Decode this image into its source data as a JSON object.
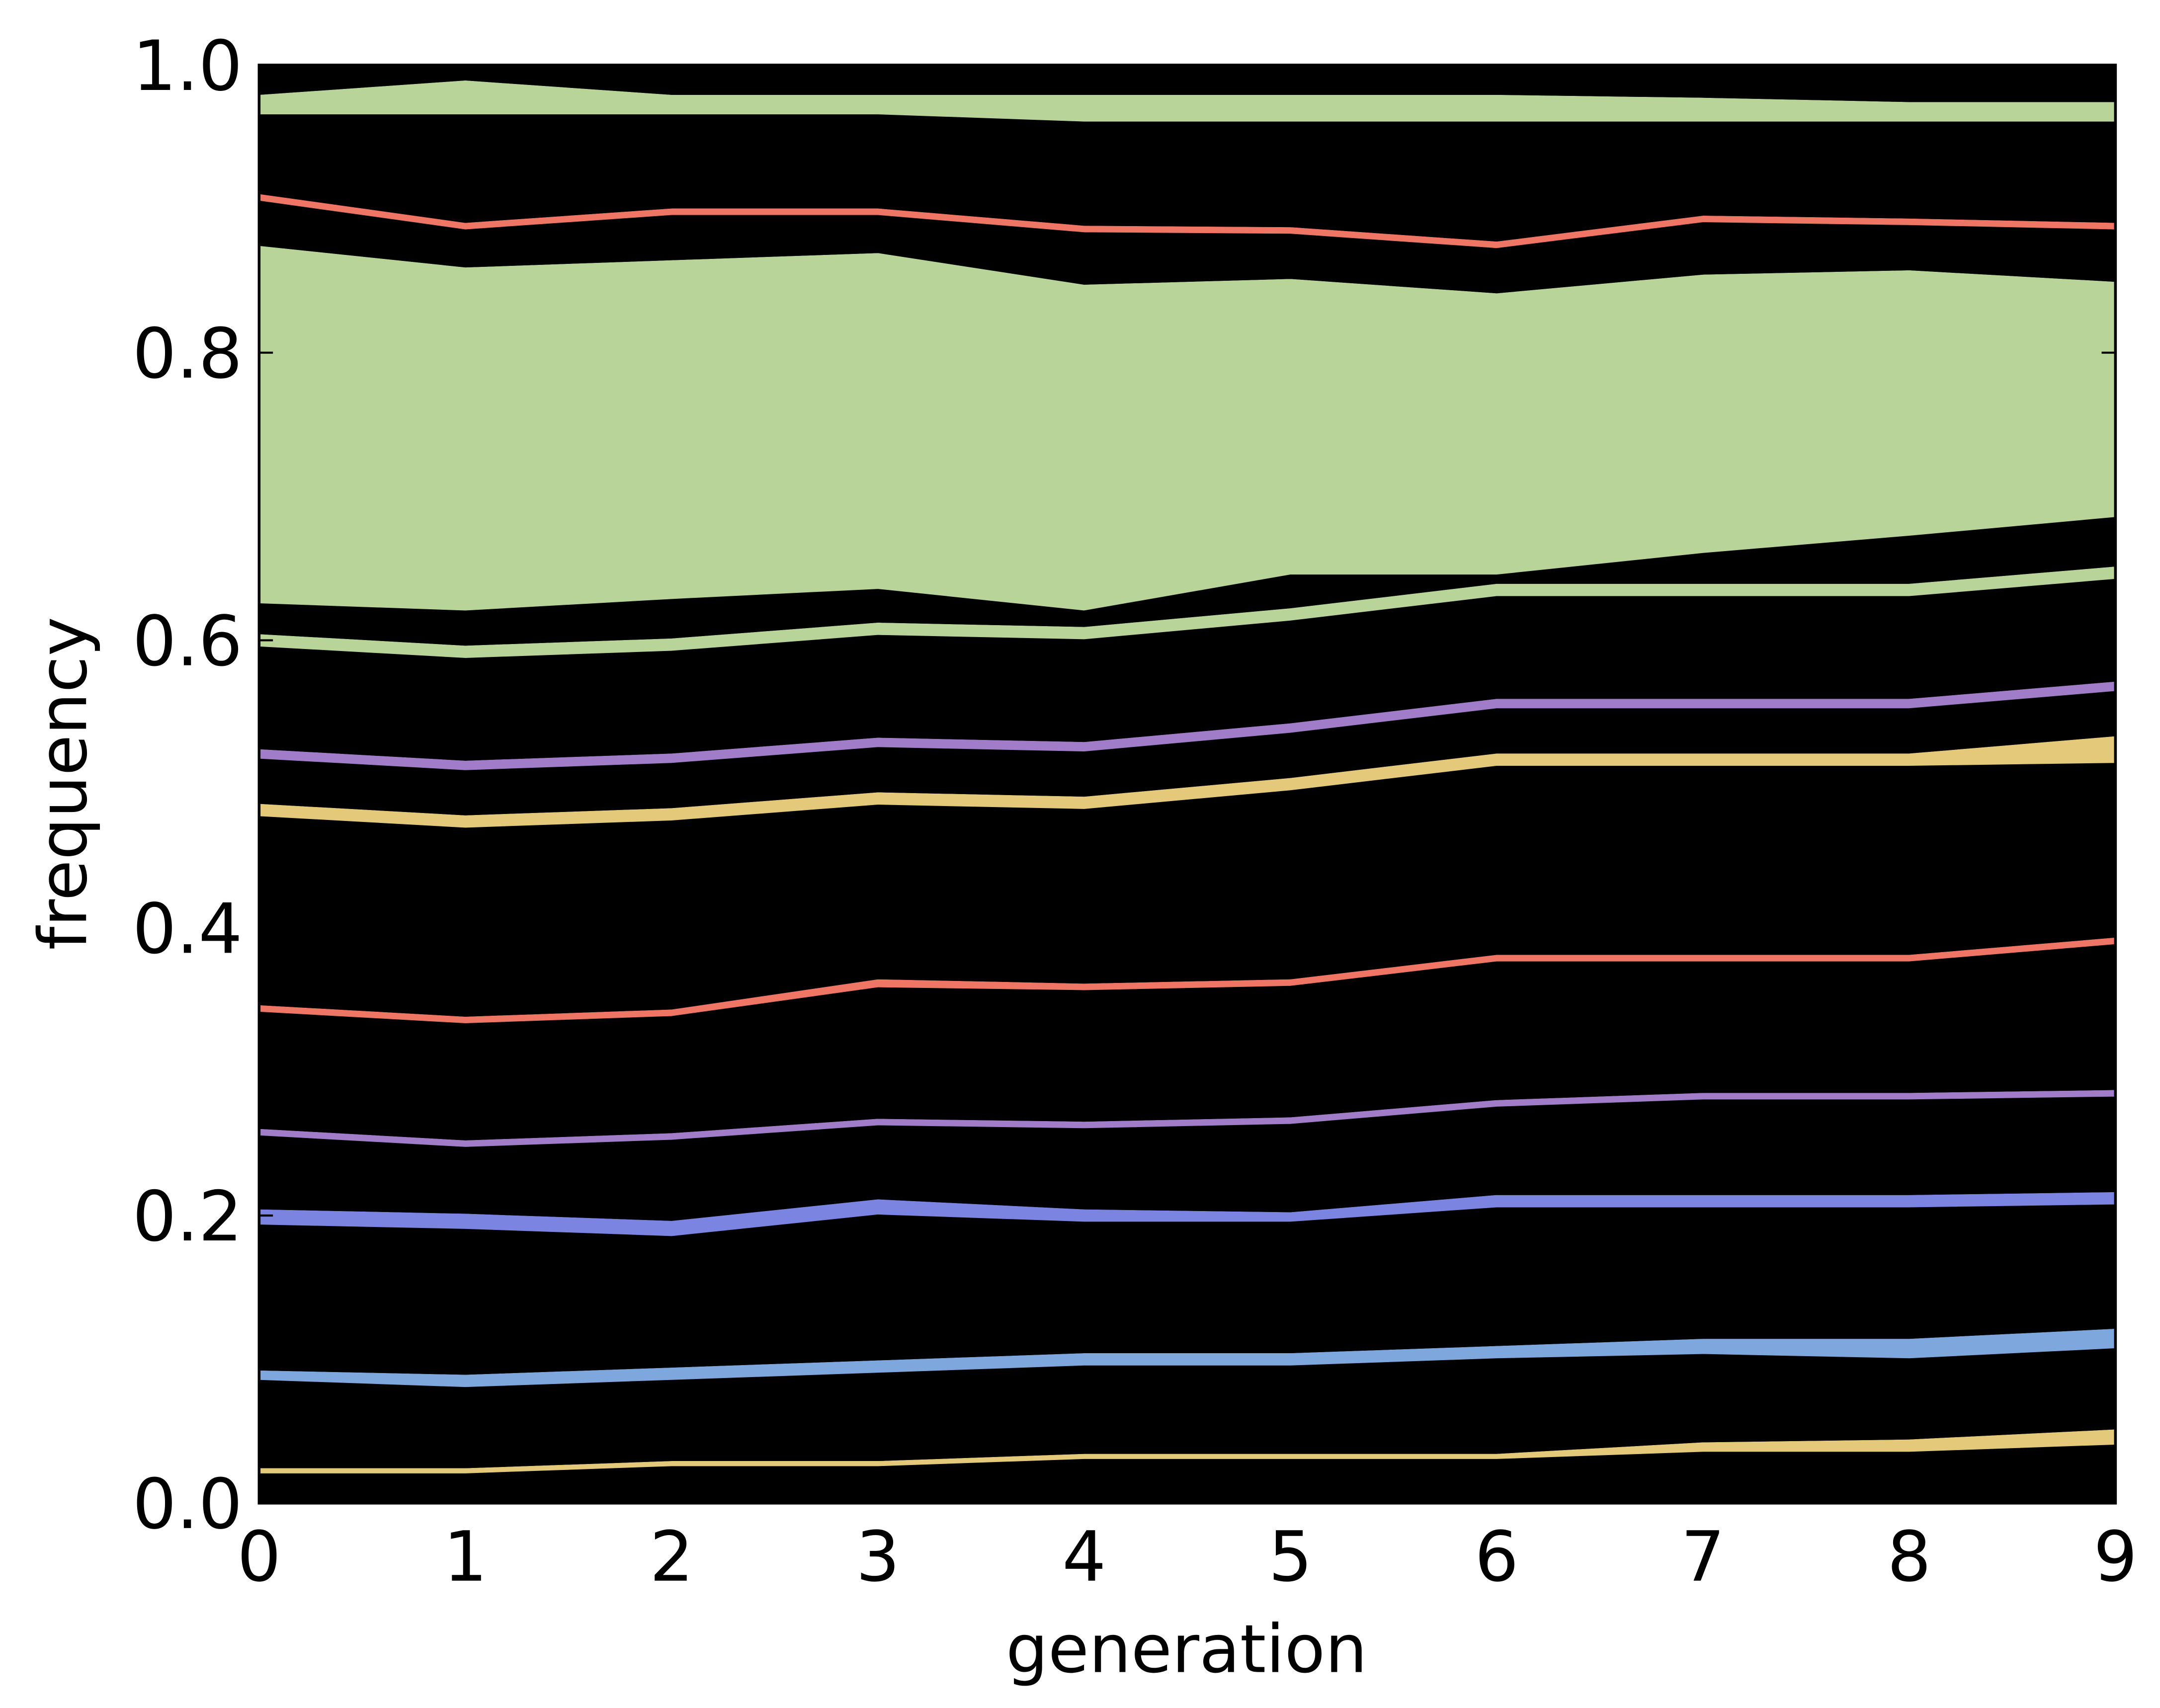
{
  "chart_data": {
    "type": "stacked_area",
    "x_label": "generation",
    "y_label": "frequency",
    "x": [
      0,
      1,
      2,
      3,
      4,
      5,
      6,
      7,
      8,
      9
    ],
    "xlim": [
      0,
      9
    ],
    "xticks": [
      0,
      1,
      2,
      3,
      4,
      5,
      6,
      7,
      8,
      9
    ],
    "ylim": [
      0,
      1
    ],
    "yticks": [
      {
        "value": 0,
        "label": "0.0"
      },
      0.2,
      0.4,
      0.6,
      0.8,
      {
        "value": 1,
        "label": "1.0"
      }
    ],
    "series": [
      {
        "color": "#000000",
        "values": [
          0.02,
          0.02,
          0.025,
          0.025,
          0.03,
          0.03,
          0.03,
          0.035,
          0.035,
          0.04
        ]
      },
      {
        "color": "#e5c97a",
        "values": [
          0.005,
          0.005,
          0.005,
          0.005,
          0.005,
          0.005,
          0.005,
          0.008,
          0.01,
          0.012
        ]
      },
      {
        "color": "#000000",
        "values": [
          0.06,
          0.055,
          0.055,
          0.06,
          0.06,
          0.06,
          0.065,
          0.06,
          0.055,
          0.055
        ]
      },
      {
        "color": "#7ea7dd",
        "values": [
          0.008,
          0.01,
          0.01,
          0.01,
          0.01,
          0.01,
          0.01,
          0.012,
          0.015,
          0.015
        ]
      },
      {
        "color": "#000000",
        "values": [
          0.1,
          0.1,
          0.09,
          0.1,
          0.09,
          0.09,
          0.095,
          0.09,
          0.09,
          0.085
        ]
      },
      {
        "color": "#7b84e0",
        "values": [
          0.012,
          0.012,
          0.012,
          0.012,
          0.01,
          0.008,
          0.01,
          0.01,
          0.01,
          0.01
        ]
      },
      {
        "color": "#000000",
        "values": [
          0.05,
          0.045,
          0.055,
          0.05,
          0.055,
          0.06,
          0.06,
          0.065,
          0.065,
          0.065
        ]
      },
      {
        "color": "#a07cc9",
        "values": [
          0.006,
          0.006,
          0.006,
          0.006,
          0.006,
          0.006,
          0.006,
          0.006,
          0.006,
          0.006
        ]
      },
      {
        "color": "#000000",
        "values": [
          0.08,
          0.08,
          0.08,
          0.09,
          0.09,
          0.09,
          0.095,
          0.09,
          0.09,
          0.1
        ]
      },
      {
        "color": "#ef7564",
        "values": [
          0.006,
          0.006,
          0.006,
          0.007,
          0.006,
          0.006,
          0.006,
          0.006,
          0.006,
          0.006
        ]
      },
      {
        "color": "#000000",
        "values": [
          0.13,
          0.13,
          0.13,
          0.12,
          0.12,
          0.13,
          0.13,
          0.13,
          0.13,
          0.12
        ]
      },
      {
        "color": "#e5c97a",
        "values": [
          0.01,
          0.01,
          0.01,
          0.01,
          0.01,
          0.01,
          0.01,
          0.01,
          0.01,
          0.02
        ]
      },
      {
        "color": "#000000",
        "values": [
          0.03,
          0.03,
          0.03,
          0.03,
          0.03,
          0.03,
          0.03,
          0.03,
          0.03,
          0.03
        ]
      },
      {
        "color": "#a07cc9",
        "values": [
          0.008,
          0.008,
          0.008,
          0.008,
          0.008,
          0.008,
          0.008,
          0.008,
          0.008,
          0.008
        ]
      },
      {
        "color": "#000000",
        "values": [
          0.07,
          0.07,
          0.07,
          0.07,
          0.07,
          0.07,
          0.07,
          0.07,
          0.07,
          0.07
        ]
      },
      {
        "color": "#b8d498",
        "values": [
          0.01,
          0.01,
          0.01,
          0.01,
          0.01,
          0.01,
          0.01,
          0.01,
          0.01,
          0.01
        ]
      },
      {
        "color": "#000000",
        "values": [
          0.02,
          0.023,
          0.026,
          0.022,
          0.01,
          0.022,
          0.005,
          0.02,
          0.032,
          0.033
        ]
      },
      {
        "color": "#b8d498",
        "values": [
          0.25,
          0.24,
          0.237,
          0.235,
          0.228,
          0.207,
          0.197,
          0.195,
          0.186,
          0.165
        ]
      },
      {
        "color": "#000000",
        "values": [
          0.03,
          0.025,
          0.03,
          0.025,
          0.035,
          0.03,
          0.03,
          0.035,
          0.03,
          0.035
        ]
      },
      {
        "color": "#ef7564",
        "values": [
          0.006,
          0.006,
          0.006,
          0.006,
          0.006,
          0.006,
          0.006,
          0.006,
          0.006,
          0.006
        ]
      },
      {
        "color": "#000000",
        "values": [
          0.054,
          0.074,
          0.064,
          0.064,
          0.071,
          0.072,
          0.082,
          0.064,
          0.066,
          0.069
        ]
      },
      {
        "color": "#b8d498",
        "values": [
          0.015,
          0.025,
          0.015,
          0.015,
          0.02,
          0.02,
          0.02,
          0.018,
          0.015,
          0.015
        ]
      },
      {
        "color": "#000000",
        "values": [
          0.02,
          0.01,
          0.02,
          0.02,
          0.02,
          0.02,
          0.02,
          0.022,
          0.025,
          0.025
        ]
      }
    ]
  }
}
